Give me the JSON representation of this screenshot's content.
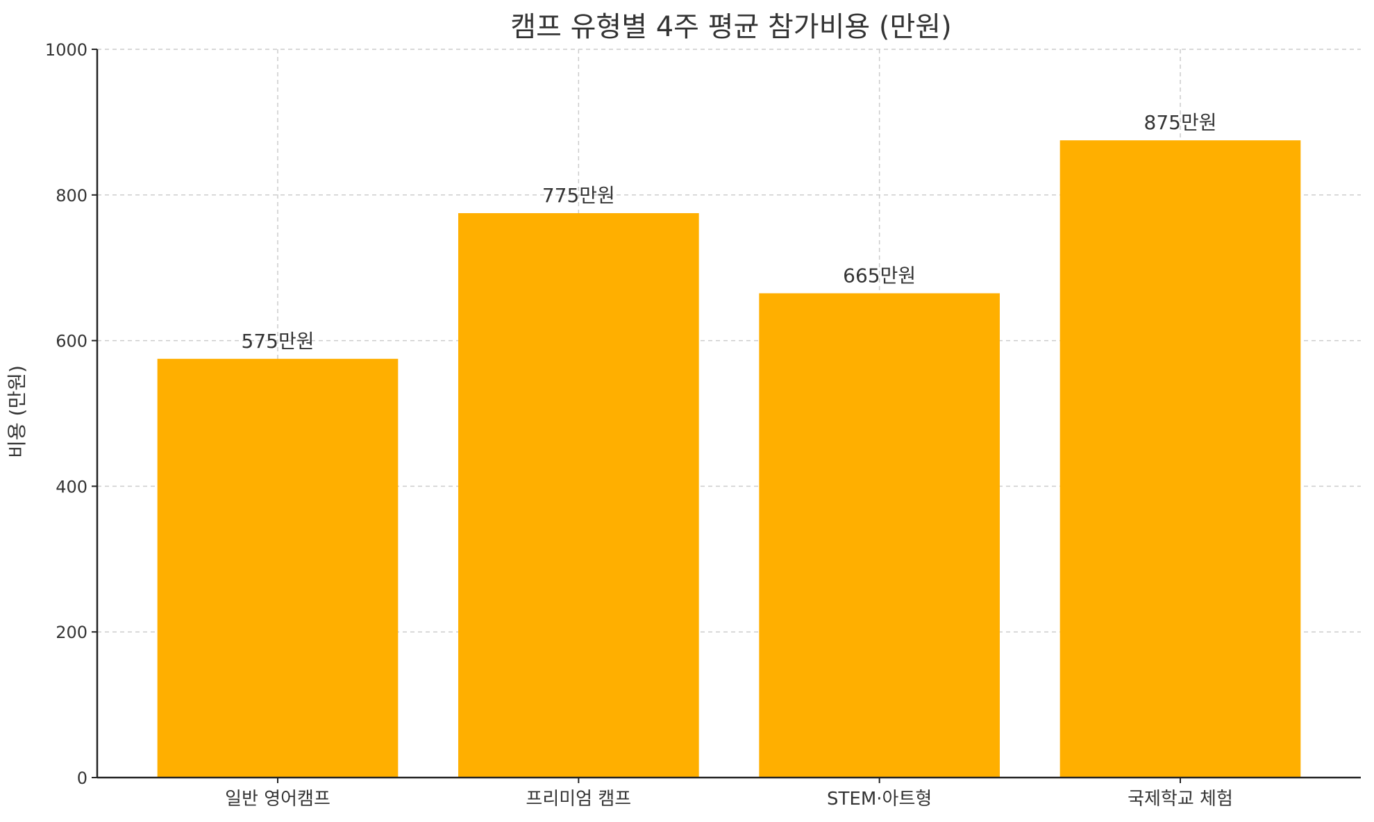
{
  "chart_data": {
    "type": "bar",
    "title": "캠프 유형별 4주 평균 참가비용 (만원)",
    "xlabel": "",
    "ylabel": "비용 (만원)",
    "categories": [
      "일반 영어캠프",
      "프리미엄 캠프",
      "STEM·아트형",
      "국제학교 체험"
    ],
    "values": [
      575,
      775,
      665,
      875
    ],
    "value_labels": [
      "575만원",
      "775만원",
      "665만원",
      "875만원"
    ],
    "ylim": [
      0,
      1000
    ],
    "yticks": [
      0,
      200,
      400,
      600,
      800,
      1000
    ],
    "ytick_labels": [
      "0",
      "200",
      "400",
      "600",
      "800",
      "1000"
    ],
    "bar_color": "#FFAF00",
    "grid": true,
    "legend": "none"
  }
}
